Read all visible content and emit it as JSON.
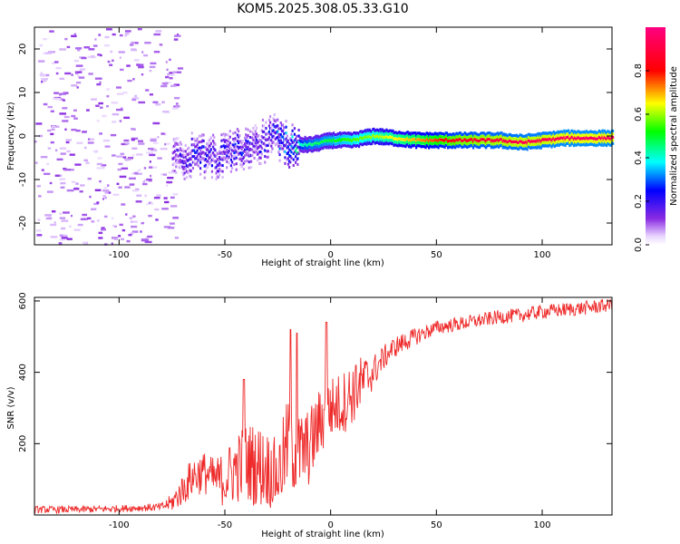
{
  "title": "KOM5.2025.308.05.33.G10",
  "colors": {
    "snr_line": "#ee2a2a",
    "axes": "#000000"
  },
  "chart_data": [
    {
      "type": "heatmap",
      "id": "spectrogram",
      "xlabel": "Height of straight line (km)",
      "ylabel": "Frequency (Hz)",
      "xlim": [
        -140,
        133
      ],
      "ylim": [
        -25,
        25
      ],
      "xticks": [
        -100,
        -50,
        0,
        50,
        100
      ],
      "yticks": [
        -20,
        -10,
        0,
        10,
        20
      ],
      "colorbar": {
        "label": "Normalized spectral amplitude",
        "range": [
          0,
          1
        ],
        "ticks": [
          "0.0",
          "0.2",
          "0.4",
          "0.6",
          "0.8"
        ],
        "tick_values": [
          0,
          0.2,
          0.4,
          0.6,
          0.8
        ],
        "colormap": "rainbow (white, violet, blue, cyan, green, yellow, red, magenta)"
      },
      "ridge": {
        "description": "dominant frequency track",
        "x": [
          -75,
          -65,
          -55,
          -45,
          -35,
          -28,
          -20,
          -10,
          0,
          10,
          20,
          40,
          60,
          80,
          90,
          100,
          110,
          120,
          133
        ],
        "freq_hz": [
          -6,
          -4,
          -5,
          -3,
          -2,
          0,
          -2,
          -2,
          -1,
          -1,
          0,
          -1,
          -1,
          -1,
          -1.5,
          -1,
          -0.5,
          -0.5,
          -0.5
        ],
        "amplitude": [
          0.15,
          0.25,
          0.22,
          0.25,
          0.2,
          0.25,
          0.35,
          0.45,
          0.5,
          0.55,
          0.6,
          0.7,
          0.85,
          0.9,
          0.92,
          0.92,
          0.95,
          0.95,
          0.95
        ]
      },
      "noise_region": {
        "x_range": [
          -140,
          -78
        ],
        "freq_range": [
          -25,
          25
        ],
        "amplitude": "low (0.05-0.2)"
      }
    },
    {
      "type": "line",
      "id": "snr",
      "xlabel": "Height of straight line (km)",
      "ylabel": "SNR (v/v)",
      "xlim": [
        -140,
        133
      ],
      "ylim": [
        0,
        610
      ],
      "xticks": [
        -100,
        -50,
        0,
        50,
        100
      ],
      "yticks": [
        200,
        400,
        600
      ],
      "series": [
        {
          "name": "SNR",
          "x": [
            -140,
            -120,
            -100,
            -90,
            -80,
            -75,
            -70,
            -65,
            -60,
            -55,
            -50,
            -45,
            -40,
            -35,
            -30,
            -25,
            -20,
            -15,
            -10,
            -5,
            0,
            5,
            10,
            15,
            20,
            25,
            30,
            40,
            50,
            60,
            70,
            80,
            90,
            100,
            110,
            120,
            133
          ],
          "mean": [
            15,
            15,
            18,
            20,
            22,
            35,
            70,
            110,
            120,
            100,
            100,
            130,
            150,
            140,
            130,
            110,
            200,
            170,
            190,
            260,
            300,
            310,
            340,
            370,
            400,
            440,
            470,
            500,
            525,
            535,
            545,
            555,
            560,
            570,
            575,
            580,
            590
          ],
          "spread": [
            10,
            10,
            10,
            10,
            12,
            25,
            45,
            60,
            60,
            60,
            80,
            100,
            110,
            120,
            110,
            100,
            140,
            120,
            110,
            100,
            90,
            90,
            90,
            80,
            50,
            35,
            30,
            25,
            20,
            20,
            20,
            20,
            20,
            20,
            20,
            20,
            20
          ],
          "peaks_x": [
            -41,
            -19,
            -16,
            -2,
            12
          ],
          "peaks_y": [
            380,
            520,
            510,
            540,
            420
          ]
        }
      ]
    }
  ]
}
